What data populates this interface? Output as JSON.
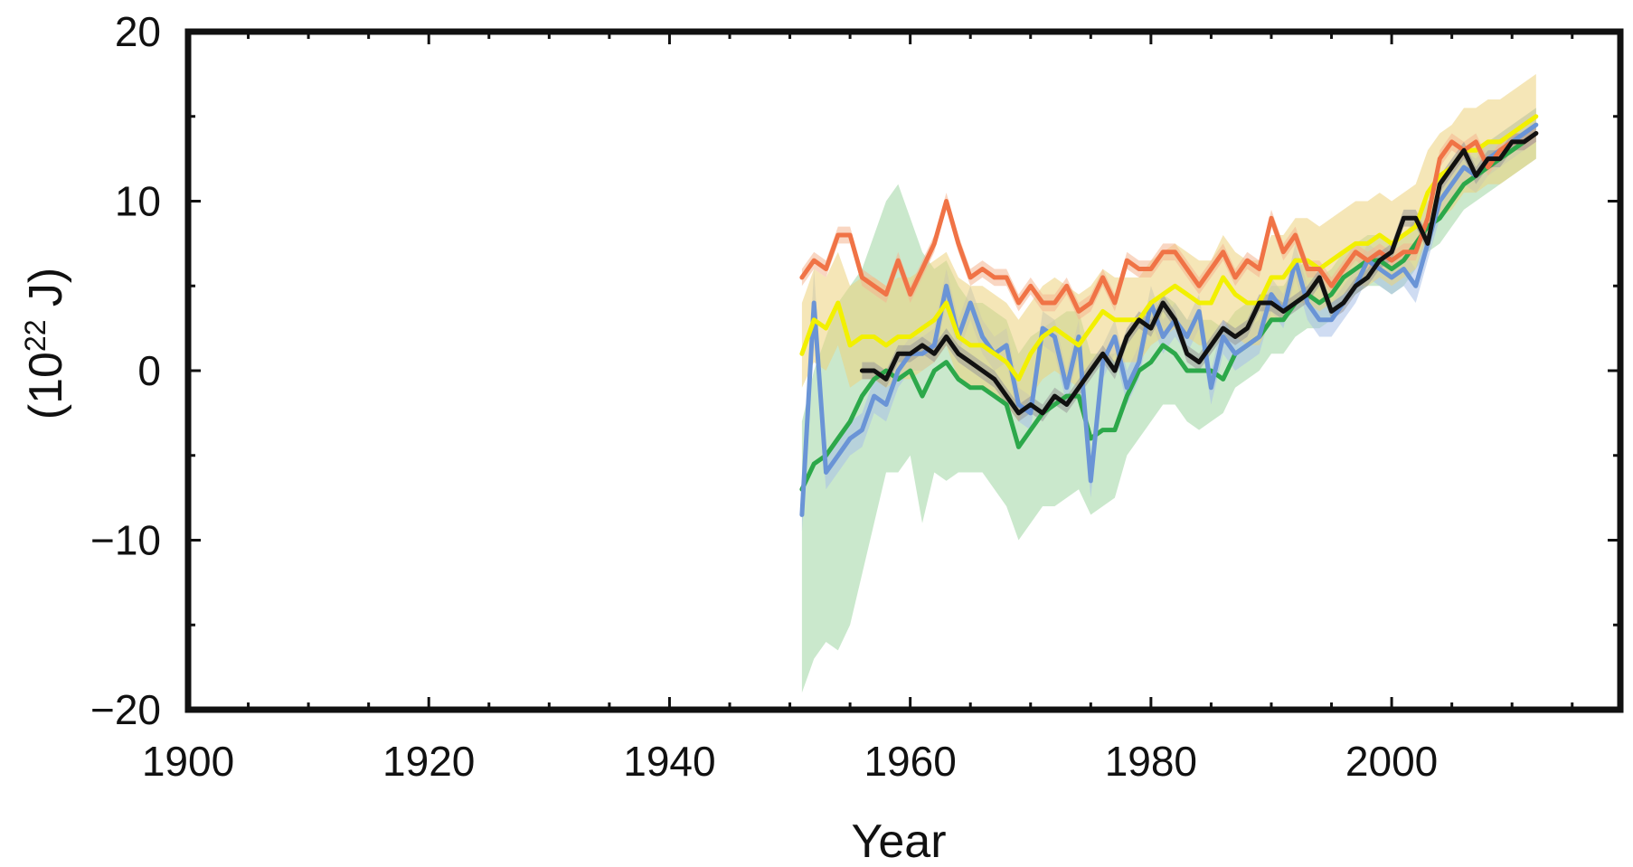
{
  "chart_data": {
    "type": "line",
    "title": "",
    "xlabel": "Year",
    "ylabel": {
      "base": "(10",
      "sup": "22",
      "unit": " J)"
    },
    "xlim": [
      1900,
      2019
    ],
    "ylim": [
      -20,
      20
    ],
    "x_ticks": [
      1900,
      1920,
      1940,
      1960,
      1980,
      2000
    ],
    "y_ticks": [
      20,
      10,
      0,
      -10,
      -20
    ],
    "y_tick_labels": [
      "20",
      "10",
      "0",
      "−10",
      "−20"
    ],
    "grid": false,
    "legend": "none",
    "series": [
      {
        "color": "#2ca84a",
        "band_color": "#9fd6a2",
        "x": [
          1951,
          1952,
          1953,
          1954,
          1955,
          1956,
          1957,
          1958,
          1959,
          1960,
          1961,
          1962,
          1963,
          1964,
          1965,
          1966,
          1967,
          1968,
          1969,
          1970,
          1971,
          1972,
          1973,
          1974,
          1975,
          1976,
          1977,
          1978,
          1979,
          1980,
          1981,
          1982,
          1983,
          1984,
          1985,
          1986,
          1987,
          1988,
          1989,
          1990,
          1991,
          1992,
          1993,
          1994,
          1995,
          1996,
          1997,
          1998,
          1999,
          2000,
          2001,
          2002,
          2003,
          2004,
          2005,
          2006,
          2007,
          2008,
          2009,
          2010,
          2011,
          2012
        ],
        "y": [
          -7,
          -5.5,
          -5,
          -4,
          -3,
          -1.5,
          -0.5,
          0,
          -0.5,
          0,
          -1.5,
          0,
          0.5,
          -0.5,
          -1,
          -1,
          -1.5,
          -2,
          -4.5,
          -3.5,
          -2.5,
          -2,
          -1.5,
          -1.5,
          -4,
          -3.5,
          -3.5,
          -1.5,
          0,
          0.5,
          1.5,
          1,
          0,
          0,
          0,
          -0.5,
          1,
          1.5,
          2,
          3,
          3,
          4,
          4.5,
          4,
          4.5,
          5.5,
          6,
          6.5,
          6.5,
          6,
          6.5,
          7.5,
          8.5,
          9,
          10,
          11,
          11.5,
          12,
          12.5,
          13,
          13.5,
          14
        ],
        "low": [
          -19,
          -17,
          -16,
          -16.5,
          -15,
          -12,
          -9,
          -6,
          -6,
          -5,
          -9,
          -6,
          -6.5,
          -6,
          -6,
          -6,
          -7,
          -8,
          -10,
          -9,
          -8,
          -8,
          -7.5,
          -7,
          -8.5,
          -8,
          -7.5,
          -5,
          -4,
          -3,
          -2,
          -2,
          -3,
          -3.5,
          -3,
          -2.5,
          -1,
          -0.5,
          0,
          1,
          1,
          2,
          2.5,
          2.5,
          3,
          4,
          4.5,
          5,
          5,
          4.5,
          5,
          6,
          7,
          7.5,
          8.5,
          9.5,
          10,
          10.5,
          11,
          11.5,
          12,
          12.5
        ],
        "high": [
          -3,
          0,
          2,
          4,
          5,
          6,
          8,
          10,
          11,
          9,
          7,
          6,
          6.5,
          5,
          4,
          4,
          3.5,
          3,
          1,
          2,
          2.5,
          3,
          3.5,
          3.5,
          1,
          1,
          1,
          2,
          3,
          4,
          4.5,
          4,
          3,
          3,
          3,
          2.5,
          3.5,
          4,
          4,
          5,
          5,
          6,
          6.5,
          5.5,
          6,
          7,
          7.5,
          8,
          8,
          7.5,
          8,
          9,
          10,
          10.5,
          11.5,
          12.5,
          13,
          13.5,
          14,
          14.5,
          15,
          15.5
        ]
      },
      {
        "color": "#6a94d6",
        "band_color": "#a7c0e8",
        "x": [
          1951,
          1952,
          1953,
          1954,
          1955,
          1956,
          1957,
          1958,
          1959,
          1960,
          1961,
          1962,
          1963,
          1964,
          1965,
          1966,
          1967,
          1968,
          1969,
          1970,
          1971,
          1972,
          1973,
          1974,
          1975,
          1976,
          1977,
          1978,
          1979,
          1980,
          1981,
          1982,
          1983,
          1984,
          1985,
          1986,
          1987,
          1988,
          1989,
          1990,
          1991,
          1992,
          1993,
          1994,
          1995,
          1996,
          1997,
          1998,
          1999,
          2000,
          2001,
          2002,
          2003,
          2004,
          2005,
          2006,
          2007,
          2008,
          2009,
          2010,
          2011,
          2012
        ],
        "y": [
          -8.5,
          4,
          -6,
          -5,
          -4,
          -3.5,
          -1.5,
          -2,
          0,
          1,
          1,
          1.5,
          5,
          2,
          4,
          2,
          1,
          1.5,
          -2,
          -2.5,
          2.5,
          2,
          -1,
          2,
          -6.5,
          0.5,
          2,
          -1,
          0.5,
          4,
          2,
          3,
          2,
          3.5,
          -1,
          2,
          1,
          1.5,
          2,
          4.5,
          3.5,
          6.5,
          4,
          3,
          3,
          4,
          5,
          6.5,
          6,
          5.5,
          6,
          5,
          7.5,
          10,
          11,
          12,
          11.5,
          12.5,
          13,
          13.5,
          14,
          14.5
        ],
        "low": [
          -9.5,
          2,
          -7,
          -6,
          -5,
          -4.5,
          -2.5,
          -3,
          -1,
          0,
          0,
          0.5,
          4,
          1,
          3,
          1,
          0,
          0.5,
          -3,
          -3.5,
          1.5,
          1,
          -2,
          1,
          -7.5,
          -0.5,
          1,
          -2,
          -0.5,
          3,
          1,
          2,
          1,
          2.5,
          -2,
          1,
          0,
          0.5,
          1,
          3.5,
          2.5,
          5.5,
          3,
          2,
          2,
          3,
          4,
          5.5,
          5,
          4.5,
          5,
          4,
          6.5,
          9,
          10,
          11,
          10.5,
          11.5,
          12,
          12.5,
          13,
          13.5
        ],
        "high": [
          -7.5,
          6,
          -5,
          -4,
          -3,
          -2.5,
          -0.5,
          -1,
          1,
          2,
          2,
          2.5,
          6,
          3,
          5,
          3,
          2,
          2.5,
          -1,
          -1.5,
          3.5,
          3,
          0,
          3,
          -5.5,
          1.5,
          3,
          0,
          1.5,
          5,
          3,
          4,
          3,
          4.5,
          0,
          3,
          2,
          2.5,
          3,
          5.5,
          4.5,
          7.5,
          5,
          4,
          4,
          5,
          6,
          7.5,
          7,
          6.5,
          7,
          6,
          8.5,
          11,
          12,
          13,
          12.5,
          13.5,
          14,
          14.5,
          15,
          15.5
        ]
      },
      {
        "color": "#f2f000",
        "band_color": "#ecd27c",
        "x": [
          1951,
          1952,
          1953,
          1954,
          1955,
          1956,
          1957,
          1958,
          1959,
          1960,
          1961,
          1962,
          1963,
          1964,
          1965,
          1966,
          1967,
          1968,
          1969,
          1970,
          1971,
          1972,
          1973,
          1974,
          1975,
          1976,
          1977,
          1978,
          1979,
          1980,
          1981,
          1982,
          1983,
          1984,
          1985,
          1986,
          1987,
          1988,
          1989,
          1990,
          1991,
          1992,
          1993,
          1994,
          1995,
          1996,
          1997,
          1998,
          1999,
          2000,
          2001,
          2002,
          2003,
          2004,
          2005,
          2006,
          2007,
          2008,
          2009,
          2010,
          2011,
          2012
        ],
        "y": [
          1,
          3,
          2.5,
          4,
          1.5,
          2,
          2,
          1.5,
          2,
          2,
          2.5,
          3,
          4,
          2,
          1.5,
          1.5,
          1,
          0.5,
          -0.5,
          1,
          2,
          2.5,
          2,
          1.5,
          2.5,
          3.5,
          3,
          3,
          3,
          4,
          4.5,
          5,
          4.5,
          4,
          4,
          5.5,
          4.5,
          4,
          4,
          5.5,
          5.5,
          6.5,
          6.5,
          6,
          6.5,
          7,
          7.5,
          7.5,
          8,
          7.5,
          8,
          8.5,
          10.5,
          11.5,
          12,
          13,
          13,
          13.5,
          13.5,
          14,
          14.5,
          15
        ],
        "low": [
          -1,
          0.5,
          0,
          1.5,
          -1,
          -0.5,
          -0.5,
          -1,
          -0.5,
          -0.5,
          0,
          0.5,
          1.5,
          -0.5,
          -1,
          -1,
          -1.5,
          -2,
          -3,
          -1.5,
          -0.5,
          0,
          -0.5,
          -1,
          0,
          1,
          0.5,
          0.5,
          0.5,
          1.5,
          2,
          2.5,
          2,
          1.5,
          1.5,
          3,
          2,
          1.5,
          1.5,
          3,
          3,
          4,
          4,
          3.5,
          4,
          4.5,
          5,
          5,
          5.5,
          5,
          5.5,
          6,
          8,
          9,
          9.5,
          10.5,
          10.5,
          11,
          11,
          11.5,
          12,
          12.5
        ],
        "high": [
          4,
          6,
          5.5,
          7,
          5,
          5.5,
          5.5,
          5,
          5.5,
          5.5,
          6,
          6.5,
          7,
          5.5,
          5,
          5,
          4.5,
          4,
          3,
          4,
          5,
          5.5,
          5,
          4.5,
          5,
          6,
          5.5,
          5.5,
          5.5,
          6.5,
          7,
          7.5,
          7,
          6.5,
          6.5,
          8,
          7,
          6.5,
          6.5,
          8,
          8,
          9,
          9,
          8.5,
          9,
          9.5,
          10,
          10,
          10.5,
          10,
          10.5,
          11,
          13,
          14,
          14.5,
          15.5,
          15.5,
          16,
          16,
          16.5,
          17,
          17.5
        ]
      },
      {
        "color": "#f07346",
        "band_color": "#f4b48f",
        "x": [
          1951,
          1952,
          1953,
          1954,
          1955,
          1956,
          1957,
          1958,
          1959,
          1960,
          1961,
          1962,
          1963,
          1964,
          1965,
          1966,
          1967,
          1968,
          1969,
          1970,
          1971,
          1972,
          1973,
          1974,
          1975,
          1976,
          1977,
          1978,
          1979,
          1980,
          1981,
          1982,
          1983,
          1984,
          1985,
          1986,
          1987,
          1988,
          1989,
          1990,
          1991,
          1992,
          1993,
          1994,
          1995,
          1996,
          1997,
          1998,
          1999,
          2000,
          2001,
          2002,
          2003,
          2004,
          2005,
          2006,
          2007,
          2008,
          2009,
          2010,
          2011,
          2012
        ],
        "y": [
          5.5,
          6.5,
          6,
          8,
          8,
          5.5,
          5,
          4.5,
          6.5,
          4.5,
          6,
          7.5,
          10,
          7.5,
          5.5,
          6,
          5.5,
          5.5,
          4,
          5,
          4,
          4,
          5,
          3.5,
          4,
          5.5,
          4,
          6.5,
          6,
          6,
          7,
          7,
          6,
          5,
          6,
          7,
          5.5,
          6.5,
          6,
          9,
          7,
          8,
          6,
          6,
          5,
          6,
          7,
          6.5,
          7,
          6.5,
          7,
          7,
          9,
          12.5,
          13.5,
          13,
          13.5,
          12,
          13,
          13.5,
          13.5,
          14
        ],
        "low": [
          5,
          6,
          5.5,
          7.5,
          7.5,
          5,
          4.5,
          4,
          6,
          4,
          5.5,
          7,
          9.5,
          7,
          5,
          5.5,
          5,
          5,
          3.5,
          4.5,
          3.5,
          3.5,
          4.5,
          3,
          3.5,
          5,
          3.5,
          6,
          5.5,
          5.5,
          6.5,
          6.5,
          5.5,
          4.5,
          5.5,
          6.5,
          5,
          6,
          5.5,
          8.5,
          6.5,
          7.5,
          5.5,
          5.5,
          4.5,
          5.5,
          6.5,
          6,
          6.5,
          6,
          6.5,
          6.5,
          8.5,
          12,
          13,
          12.5,
          13,
          11.5,
          12.5,
          13,
          13,
          13.5
        ],
        "high": [
          6,
          7,
          6.5,
          8.5,
          8.5,
          6,
          5.5,
          5,
          7,
          5,
          6.5,
          8,
          10.5,
          8,
          6,
          6.5,
          6,
          6,
          4.5,
          5.5,
          4.5,
          4.5,
          5.5,
          4,
          4.5,
          6,
          4.5,
          7,
          6.5,
          6.5,
          7.5,
          7.5,
          6.5,
          5.5,
          6.5,
          7.5,
          6,
          7,
          6.5,
          9.5,
          7.5,
          8.5,
          6.5,
          6.5,
          5.5,
          6.5,
          7.5,
          7,
          7.5,
          7,
          7.5,
          7.5,
          9.5,
          13,
          14,
          13.5,
          14,
          12.5,
          13.5,
          14,
          14,
          14.5
        ]
      },
      {
        "color": "#111111",
        "band_color": "#999999",
        "x": [
          1956,
          1957,
          1958,
          1959,
          1960,
          1961,
          1962,
          1963,
          1964,
          1965,
          1966,
          1967,
          1968,
          1969,
          1970,
          1971,
          1972,
          1973,
          1974,
          1975,
          1976,
          1977,
          1978,
          1979,
          1980,
          1981,
          1982,
          1983,
          1984,
          1985,
          1986,
          1987,
          1988,
          1989,
          1990,
          1991,
          1992,
          1993,
          1994,
          1995,
          1996,
          1997,
          1998,
          1999,
          2000,
          2001,
          2002,
          2003,
          2004,
          2005,
          2006,
          2007,
          2008,
          2009,
          2010,
          2011,
          2012
        ],
        "y": [
          0,
          0,
          -0.5,
          1,
          1,
          1.5,
          1,
          2,
          1,
          0.5,
          0,
          -0.5,
          -1.5,
          -2.5,
          -2,
          -2.5,
          -1.5,
          -2,
          -1,
          0,
          1,
          0,
          2,
          3,
          2.5,
          4,
          3,
          1,
          0.5,
          1.5,
          2.5,
          2,
          2.5,
          4,
          4,
          3.5,
          4,
          4.5,
          5.5,
          3.5,
          4,
          5,
          5.5,
          6.5,
          7,
          9,
          9,
          7.5,
          11,
          12,
          13,
          11.5,
          12.5,
          12.5,
          13.5,
          13.5,
          14
        ],
        "low": [
          -0.5,
          -0.5,
          -1,
          0.5,
          0.5,
          1,
          0.5,
          1.5,
          0.5,
          0,
          -0.5,
          -1,
          -2,
          -3,
          -2.5,
          -3,
          -2,
          -2.5,
          -1.5,
          -0.5,
          0.5,
          -0.5,
          1.5,
          2.5,
          2,
          3.5,
          2.5,
          0.5,
          0,
          1,
          2,
          1.5,
          2,
          3.5,
          3.5,
          3,
          3.5,
          4,
          5,
          3,
          3.5,
          4.5,
          5,
          6,
          6.5,
          8.5,
          8.5,
          7,
          10.5,
          11.5,
          12.5,
          11,
          12,
          12,
          13,
          13,
          13.5
        ],
        "high": [
          0.5,
          0.5,
          0,
          1.5,
          1.5,
          2,
          1.5,
          2.5,
          1.5,
          1,
          0.5,
          0,
          -1,
          -2,
          -1.5,
          -2,
          -1,
          -1.5,
          -0.5,
          0.5,
          1.5,
          0.5,
          2.5,
          3.5,
          3,
          4.5,
          3.5,
          1.5,
          1,
          2,
          3,
          2.5,
          3,
          4.5,
          4.5,
          4,
          4.5,
          5,
          6,
          4,
          4.5,
          5.5,
          6,
          7,
          7.5,
          9.5,
          9.5,
          8,
          11.5,
          12.5,
          13.5,
          12,
          13,
          13,
          14,
          14,
          14.5
        ]
      }
    ]
  }
}
